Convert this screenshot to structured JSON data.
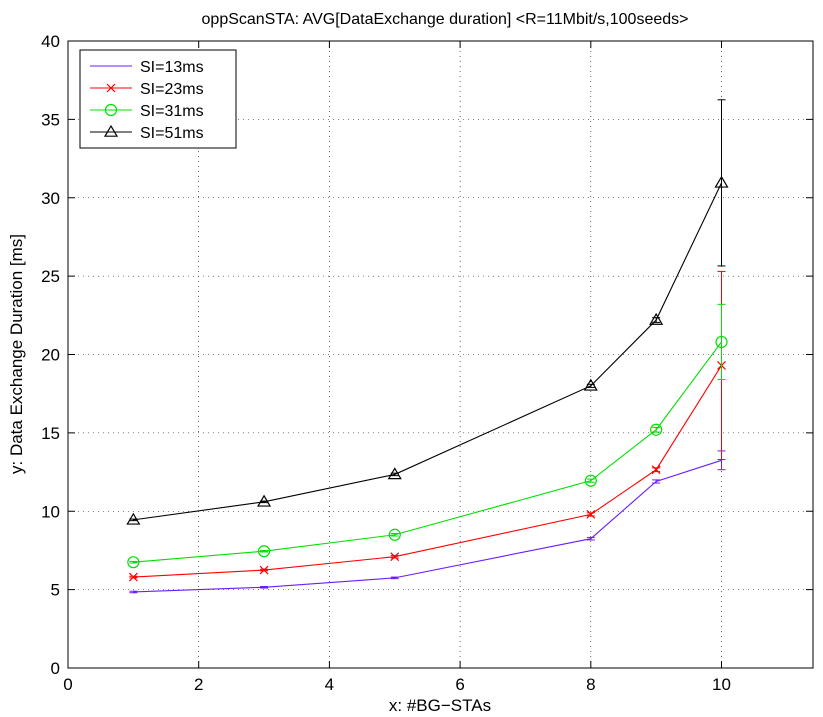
{
  "chart_data": {
    "type": "line",
    "title": "oppScanSTA: AVG[DataExchange duration] <R=11Mbit/s,100seeds>",
    "xlabel": "x: #BG−STAs",
    "ylabel": "y: Data Exchange Duration [ms]",
    "xlim": [
      0,
      11.4
    ],
    "ylim": [
      0,
      40
    ],
    "xticks": [
      0,
      2,
      4,
      6,
      8,
      10
    ],
    "yticks": [
      0,
      5,
      10,
      15,
      20,
      25,
      30,
      35,
      40
    ],
    "grid": true,
    "legend_position": "top-left",
    "x": [
      1,
      3,
      5,
      8,
      9,
      10
    ],
    "series": [
      {
        "name": "SI=13ms",
        "color": "#6a1cff",
        "marker": "none",
        "values": [
          4.85,
          5.15,
          5.75,
          8.25,
          11.9,
          13.25
        ],
        "error": [
          0.05,
          0.05,
          0.05,
          0.08,
          0.1,
          0.6
        ]
      },
      {
        "name": "SI=23ms",
        "color": "#ff0000",
        "marker": "x",
        "values": [
          5.8,
          6.25,
          7.1,
          9.8,
          12.65,
          19.3
        ],
        "error": [
          0.05,
          0.05,
          0.08,
          0.1,
          0.12,
          6.0
        ]
      },
      {
        "name": "SI=31ms",
        "color": "#00e000",
        "marker": "circle",
        "values": [
          6.75,
          7.45,
          8.5,
          11.95,
          15.2,
          20.8
        ],
        "error": [
          0.05,
          0.05,
          0.08,
          0.1,
          0.15,
          2.4
        ]
      },
      {
        "name": "SI=51ms",
        "color": "#000000",
        "marker": "triangle",
        "values": [
          9.45,
          10.6,
          12.35,
          18.0,
          22.2,
          30.95
        ],
        "error": [
          0.05,
          0.05,
          0.08,
          0.1,
          0.15,
          5.3
        ]
      }
    ]
  }
}
